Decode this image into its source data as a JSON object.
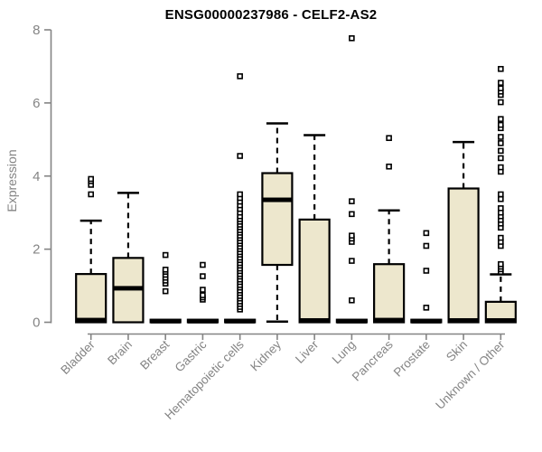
{
  "colors": {
    "box_fill": "#EDE7CD",
    "box_border": "#000000",
    "median": "#000000",
    "whisker": "#000000",
    "outlier_fill": "#ffffff",
    "axis": "#848484",
    "title": "#000000",
    "background": "#ffffff"
  },
  "chart_data": {
    "type": "boxplot",
    "title": "ENSG00000237986 - CELF2-AS2",
    "xlabel": "",
    "ylabel": "Expression",
    "ylim": [
      0,
      8
    ],
    "yticks": [
      0,
      2,
      4,
      6,
      8
    ],
    "grid": false,
    "legend": false,
    "categories": [
      "Bladder",
      "Brain",
      "Breast",
      "Gastric",
      "Hematopoietic cells",
      "Kidney",
      "Liver",
      "Lung",
      "Pancreas",
      "Prostate",
      "Skin",
      "Unknown / Other"
    ],
    "series": [
      {
        "label": "Bladder",
        "q1": 0,
        "median": 0.06,
        "q3": 1.32,
        "whisker_low": 0,
        "whisker_high": 2.78,
        "outliers": [
          3.5,
          3.76,
          3.86,
          3.92
        ]
      },
      {
        "label": "Brain",
        "q1": 0,
        "median": 0.93,
        "q3": 1.76,
        "whisker_low": 0,
        "whisker_high": 3.54,
        "outliers": []
      },
      {
        "label": "Breast",
        "q1": 0,
        "median": 0.03,
        "q3": 0.07,
        "whisker_low": 0,
        "whisker_high": 0.07,
        "outliers": [
          0.85,
          1.06,
          1.14,
          1.22,
          1.3,
          1.38,
          1.44,
          1.84
        ]
      },
      {
        "label": "Gastric",
        "q1": 0,
        "median": 0.03,
        "q3": 0.07,
        "whisker_low": 0,
        "whisker_high": 0.07,
        "outliers": [
          0.62,
          0.68,
          0.74,
          0.89,
          1.26,
          1.57
        ]
      },
      {
        "label": "Hematopoietic cells",
        "q1": 0,
        "median": 0.03,
        "q3": 0.07,
        "whisker_low": 0,
        "whisker_high": 0.07,
        "outliers": [
          0.35,
          0.42,
          0.5,
          0.57,
          0.65,
          0.72,
          0.8,
          0.87,
          0.95,
          1.02,
          1.1,
          1.17,
          1.25,
          1.32,
          1.4,
          1.47,
          1.55,
          1.62,
          1.7,
          1.77,
          1.85,
          1.92,
          2.0,
          2.07,
          2.15,
          2.22,
          2.3,
          2.37,
          2.45,
          2.52,
          2.6,
          2.67,
          2.75,
          2.82,
          2.9,
          3.0,
          3.1,
          3.2,
          3.3,
          3.4,
          3.5,
          4.55,
          6.73
        ]
      },
      {
        "label": "Kidney",
        "q1": 1.57,
        "median": 3.35,
        "q3": 4.08,
        "whisker_low": 0.02,
        "whisker_high": 5.44,
        "outliers": []
      },
      {
        "label": "Liver",
        "q1": 0,
        "median": 0.05,
        "q3": 2.81,
        "whisker_low": 0,
        "whisker_high": 5.12,
        "outliers": []
      },
      {
        "label": "Lung",
        "q1": 0,
        "median": 0.03,
        "q3": 0.07,
        "whisker_low": 0,
        "whisker_high": 0.07,
        "outliers": [
          0.6,
          1.68,
          2.2,
          2.29,
          2.37,
          2.96,
          3.31,
          7.77
        ]
      },
      {
        "label": "Pancreas",
        "q1": 0,
        "median": 0.06,
        "q3": 1.59,
        "whisker_low": 0,
        "whisker_high": 3.06,
        "outliers": [
          4.26,
          5.04
        ]
      },
      {
        "label": "Prostate",
        "q1": 0,
        "median": 0.03,
        "q3": 0.07,
        "whisker_low": 0,
        "whisker_high": 0.07,
        "outliers": [
          0.4,
          1.41,
          2.09,
          2.44
        ]
      },
      {
        "label": "Skin",
        "q1": 0,
        "median": 0.05,
        "q3": 3.66,
        "whisker_low": 0,
        "whisker_high": 4.93,
        "outliers": []
      },
      {
        "label": "Unknown / Other",
        "q1": 0,
        "median": 0.05,
        "q3": 0.56,
        "whisker_low": 0,
        "whisker_high": 1.31,
        "outliers": [
          1.38,
          1.45,
          1.52,
          1.59,
          2.09,
          2.2,
          2.31,
          2.59,
          2.7,
          2.8,
          2.9,
          3.0,
          3.12,
          3.37,
          3.5,
          4.12,
          4.24,
          4.49,
          4.69,
          4.9,
          5.07,
          5.31,
          5.4,
          5.56,
          6.02,
          6.22,
          6.31,
          6.4,
          6.55,
          6.93
        ]
      }
    ]
  }
}
